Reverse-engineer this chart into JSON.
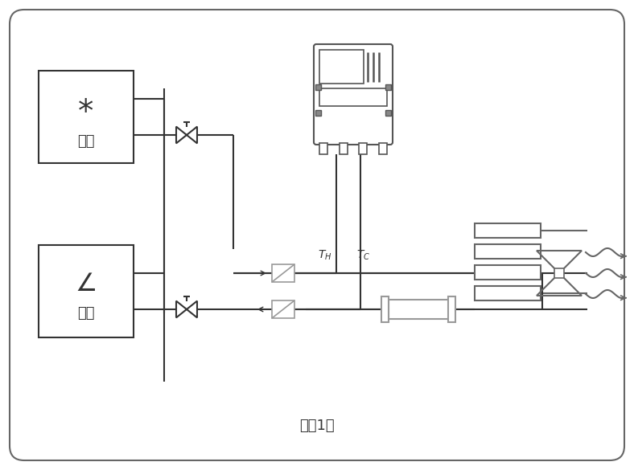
{
  "title": "（图1）",
  "bg_color": "#ffffff",
  "line_color": "#333333",
  "gray_color": "#999999",
  "cold_label": "冷源",
  "hot_label": "热源",
  "cold_symbol": "*",
  "hot_symbol": "⼰"
}
